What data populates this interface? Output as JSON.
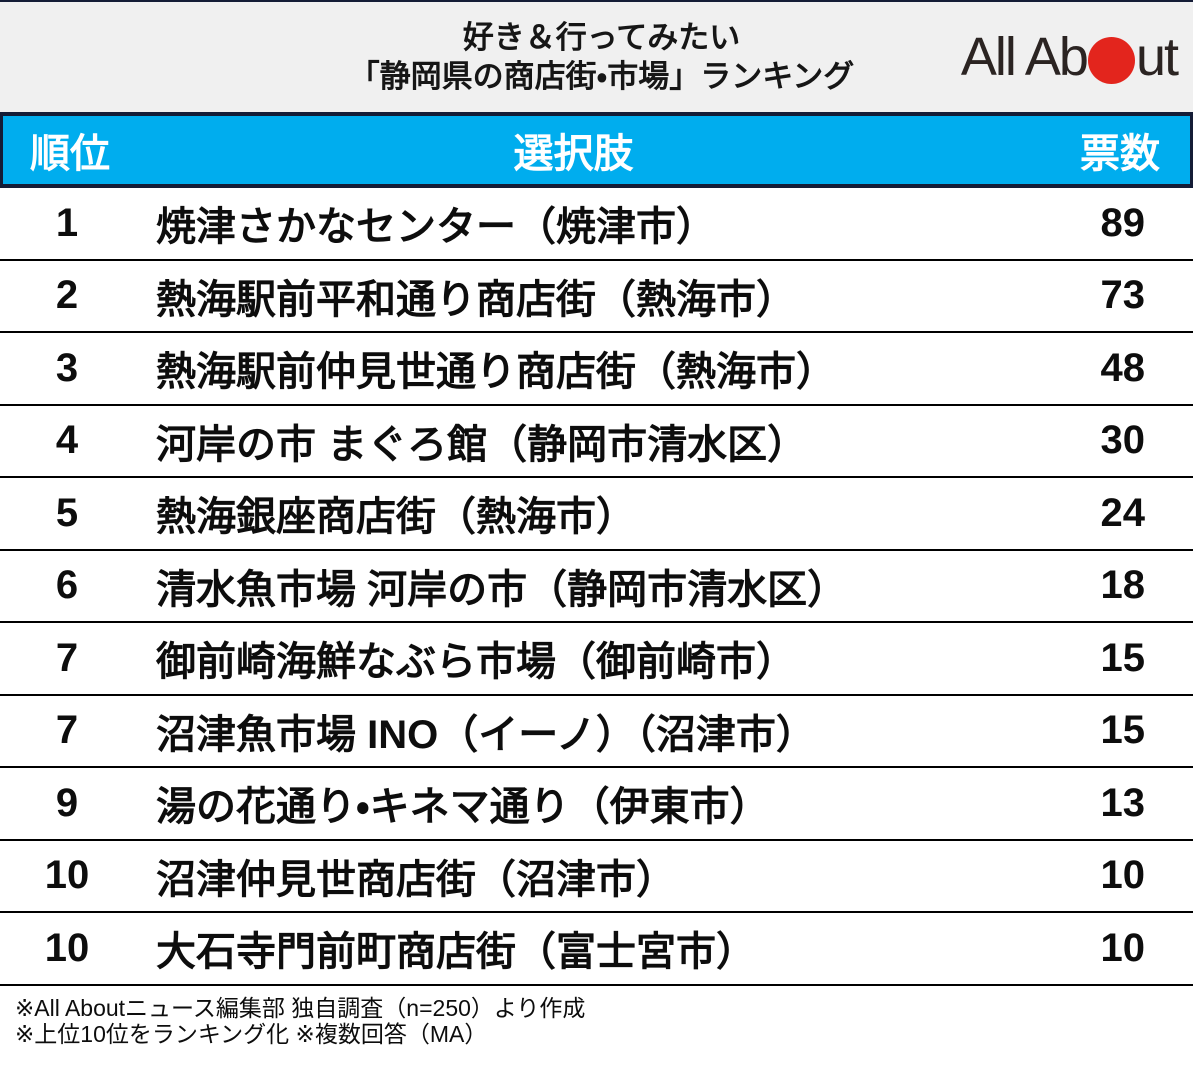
{
  "header": {
    "title_line1": "好き＆行ってみたい",
    "title_line2": "「静岡県の商店街・市場」ランキング"
  },
  "logo": {
    "part1": "All Ab",
    "part2": "ut",
    "alt": "All About"
  },
  "table": {
    "headers": {
      "rank": "順位",
      "name": "選択肢",
      "votes": "票数"
    },
    "rows": [
      {
        "rank": "1",
        "name": "焼津さかなセンター（焼津市）",
        "votes": "89"
      },
      {
        "rank": "2",
        "name": "熱海駅前平和通り商店街（熱海市）",
        "votes": "73"
      },
      {
        "rank": "3",
        "name": "熱海駅前仲見世通り商店街（熱海市）",
        "votes": "48"
      },
      {
        "rank": "4",
        "name": "河岸の市 まぐろ館（静岡市清水区）",
        "votes": "30"
      },
      {
        "rank": "5",
        "name": "熱海銀座商店街（熱海市）",
        "votes": "24"
      },
      {
        "rank": "6",
        "name": "清水魚市場 河岸の市（静岡市清水区）",
        "votes": "18"
      },
      {
        "rank": "7",
        "name": "御前崎海鮮なぶら市場（御前崎市）",
        "votes": "15"
      },
      {
        "rank": "7",
        "name": "沼津魚市場 INO（イーノ）（沼津市）",
        "votes": "15"
      },
      {
        "rank": "9",
        "name": "湯の花通り・キネマ通り（伊東市）",
        "votes": "13"
      },
      {
        "rank": "10",
        "name": "沼津仲見世商店街（沼津市）",
        "votes": "10"
      },
      {
        "rank": "10",
        "name": "大石寺門前町商店街（富士宮市）",
        "votes": "10"
      }
    ]
  },
  "footer": {
    "note1": "※All Aboutニュース編集部 独自調査（n=250）より作成",
    "note2": "※上位10位をランキング化 ※複数回答（MA）"
  },
  "colors": {
    "accent_cyan": "#00adee",
    "logo_red": "#e3251d",
    "band_gray": "#f0f0f0",
    "line_navy": "#141c36"
  },
  "chart_data": {
    "type": "table",
    "title": "好き＆行ってみたい「静岡県の商店街・市場」ランキング",
    "columns": [
      "順位",
      "選択肢",
      "票数"
    ],
    "rows": [
      [
        1,
        "焼津さかなセンター（焼津市）",
        89
      ],
      [
        2,
        "熱海駅前平和通り商店街（熱海市）",
        73
      ],
      [
        3,
        "熱海駅前仲見世通り商店街（熱海市）",
        48
      ],
      [
        4,
        "河岸の市 まぐろ館（静岡市清水区）",
        30
      ],
      [
        5,
        "熱海銀座商店街（熱海市）",
        24
      ],
      [
        6,
        "清水魚市場 河岸の市（静岡市清水区）",
        18
      ],
      [
        7,
        "御前崎海鮮なぶら市場（御前崎市）",
        15
      ],
      [
        7,
        "沼津魚市場 INO（イーノ）（沼津市）",
        15
      ],
      [
        9,
        "湯の花通り・キネマ通り（伊東市）",
        13
      ],
      [
        10,
        "沼津仲見世商店街（沼津市）",
        10
      ],
      [
        10,
        "大石寺門前町商店街（富士宮市）",
        10
      ]
    ],
    "notes": [
      "※All Aboutニュース編集部 独自調査（n=250）より作成",
      "※上位10位をランキング化 ※複数回答（MA）"
    ],
    "sample_size": 250
  }
}
